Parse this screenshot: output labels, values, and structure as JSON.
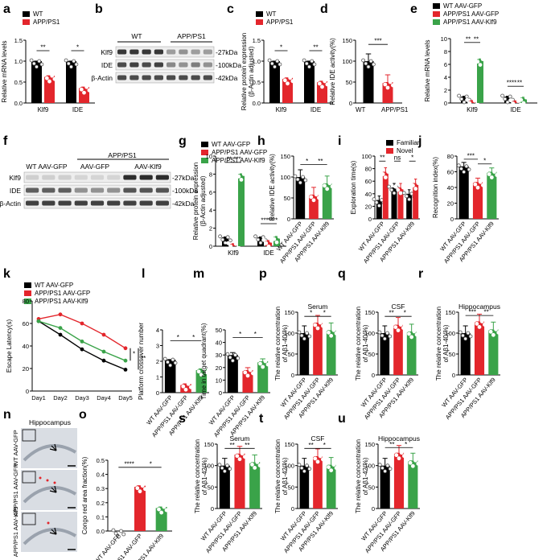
{
  "colors": {
    "wt": "#000000",
    "app": "#e3262c",
    "klf9": "#3aa349",
    "blotDark": "#222222",
    "histoBg": "#d9dde3"
  },
  "panel_labels": [
    "a",
    "b",
    "c",
    "d",
    "e",
    "f",
    "g",
    "h",
    "i",
    "j",
    "k",
    "l",
    "m",
    "n",
    "o",
    "p",
    "q",
    "r",
    "s",
    "t",
    "u"
  ],
  "legends": {
    "two": [
      "WT",
      "APP/PS1"
    ],
    "three": [
      "WT AAV-GFP",
      "APP/PS1 AAV-GFP",
      "APP/PS1 AAV-Klf9"
    ],
    "explore": [
      "Familiar",
      "Novel"
    ]
  },
  "blots": {
    "b": {
      "headers": [
        "WT",
        "APP/PS1"
      ],
      "rows_left": [
        "Klf9",
        "IDE",
        "β-Actin"
      ],
      "rows_right": [
        "-27kDa",
        "-100kDa",
        "-42kDa"
      ]
    },
    "f": {
      "headers_top": "APP/PS1",
      "headers": [
        "WT AAV-GFP",
        "AAV-GFP",
        "AAV-Klf9"
      ],
      "rows_left": [
        "Klf9",
        "IDE",
        "β-Actin"
      ],
      "rows_right": [
        "-27kDa",
        "-100kDa",
        "-42kDa"
      ]
    }
  },
  "histology": {
    "title": "Hippocampus",
    "rows": [
      "WT AAV-GFP",
      "APP/PS1 AAV-GFP",
      "APP/PS1 AAV-Klf9"
    ]
  },
  "chart_data": [
    {
      "id": "a",
      "type": "bar",
      "ylabel": "Relative mRNA levels",
      "categories": [
        "Klf9",
        "IDE"
      ],
      "ylim": [
        0,
        1.5
      ],
      "yticks": [
        "0.0",
        "0.5",
        "1.0",
        "1.5"
      ],
      "series": [
        {
          "name": "WT",
          "values": [
            1.0,
            1.0
          ]
        },
        {
          "name": "APP/PS1",
          "values": [
            0.65,
            0.38
          ]
        }
      ],
      "sig": [
        "**",
        "*"
      ]
    },
    {
      "id": "c",
      "type": "bar",
      "ylabel": "Relative protein expression (β-Actin adjusted)",
      "categories": [
        "Klf9",
        "IDE"
      ],
      "ylim": [
        0,
        1.5
      ],
      "yticks": [
        "0.0",
        "0.5",
        "1.0",
        "1.5"
      ],
      "series": [
        {
          "name": "WT",
          "values": [
            1.0,
            1.0
          ]
        },
        {
          "name": "APP/PS1",
          "values": [
            0.6,
            0.52
          ]
        }
      ],
      "sig": [
        "*",
        "**"
      ]
    },
    {
      "id": "d",
      "type": "bar",
      "ylabel": "Relative IDE activity(%)",
      "categories": [
        "WT",
        "APP/PS1"
      ],
      "ylim": [
        0,
        150
      ],
      "yticks": [
        "0",
        "50",
        "100",
        "150"
      ],
      "values": [
        100,
        50
      ],
      "sig": [
        "***"
      ]
    },
    {
      "id": "e",
      "type": "bar",
      "ylabel": "Relative mRNA levels",
      "categories": [
        "Klf9",
        "IDE"
      ],
      "ylim": [
        0,
        10
      ],
      "yticks": [
        "0",
        "2",
        "4",
        "6",
        "8",
        "10"
      ],
      "series": [
        {
          "name": "WT AAV-GFP",
          "values": [
            1.0,
            1.0
          ]
        },
        {
          "name": "APP/PS1 AAV-GFP",
          "values": [
            0.35,
            0.3
          ]
        },
        {
          "name": "APP/PS1 AAV-Klf9",
          "values": [
            6.8,
            0.85
          ]
        }
      ],
      "sig": [
        "**",
        "**",
        "****",
        "**"
      ]
    },
    {
      "id": "g",
      "type": "bar",
      "ylabel": "Relative protein expression (β-Actin adjusted)",
      "categories": [
        "Klf9",
        "IDE"
      ],
      "ylim": [
        0,
        10
      ],
      "yticks": [
        "0",
        "2",
        "4",
        "6",
        "8",
        "10"
      ],
      "axis_break": true,
      "series": [
        {
          "name": "WT AAV-GFP",
          "values": [
            1.0,
            1.0
          ]
        },
        {
          "name": "APP/PS1 AAV-GFP",
          "values": [
            0.25,
            0.6
          ]
        },
        {
          "name": "APP/PS1 AAV-Klf9",
          "values": [
            8.0,
            1.05
          ]
        }
      ],
      "sig": [
        "**",
        "***",
        "***",
        "****"
      ]
    },
    {
      "id": "h",
      "type": "bar",
      "ylabel": "Relative IDE activity(%)",
      "categories": [
        "WT AAV-GFP",
        "APP/PS1 AAV-GFP",
        "APP/PS1 AAV-Klf9"
      ],
      "ylim": [
        0,
        150
      ],
      "yticks": [
        "0",
        "50",
        "100",
        "150"
      ],
      "values": [
        100,
        58,
        85
      ],
      "sig": [
        "*",
        "**"
      ]
    },
    {
      "id": "i",
      "type": "bar",
      "ylabel": "Exploration time(s)",
      "categories": [
        "WT AAV-GFP",
        "APP/PS1 AAV-GFP",
        "APP/PS1 AAV-Klf9"
      ],
      "ylim": [
        0,
        100
      ],
      "yticks": [
        "0",
        "20",
        "40",
        "60",
        "80",
        "100"
      ],
      "series": [
        {
          "name": "Familiar",
          "values": [
            30,
            50,
            40
          ]
        },
        {
          "name": "Novel",
          "values": [
            75,
            50,
            57
          ]
        }
      ],
      "sig": [
        "**",
        "ns",
        "*"
      ]
    },
    {
      "id": "j",
      "type": "bar",
      "ylabel": "Recognition index(%)",
      "categories": [
        "WT AAV-GFP",
        "APP/PS1 AAV-GFP",
        "APP/PS1 AAV-Klf9"
      ],
      "ylim": [
        0,
        80
      ],
      "yticks": [
        "0",
        "20",
        "40",
        "60",
        "80"
      ],
      "values": [
        67,
        47,
        60
      ],
      "sig": [
        "***",
        "*",
        "*"
      ]
    },
    {
      "id": "k",
      "type": "line",
      "ylabel": "Escape Latency(s)",
      "x": [
        "Day1",
        "Day2",
        "Day3",
        "Day4",
        "Day5"
      ],
      "ylim": [
        0,
        80
      ],
      "yticks": [
        "0",
        "20",
        "40",
        "60",
        "80"
      ],
      "series": [
        {
          "name": "WT AAV-GFP",
          "values": [
            62,
            50,
            37,
            27,
            19
          ]
        },
        {
          "name": "APP/PS1 AAV-GFP",
          "values": [
            64,
            68,
            60,
            50,
            38
          ]
        },
        {
          "name": "APP/PS1 AAV-Klf9",
          "values": [
            62,
            56,
            44,
            35,
            27
          ]
        }
      ],
      "sig": [
        "*",
        "**"
      ]
    },
    {
      "id": "l",
      "type": "bar",
      "ylabel": "Platform crossover number",
      "categories": [
        "WT AAV-GFP",
        "APP/PS1 AAV-GFP",
        "APP/PS1 AAV-Klf9"
      ],
      "ylim": [
        0,
        4
      ],
      "yticks": [
        "0",
        "1",
        "2",
        "3",
        "4"
      ],
      "values": [
        2.1,
        0.55,
        1.5
      ],
      "sig": [
        "*",
        "*"
      ]
    },
    {
      "id": "m",
      "type": "bar",
      "ylabel": "Time in target quadrant(%)",
      "categories": [
        "WT AAV-GFP",
        "APP/PS1 AAV-GFP",
        "APP/PS1 AAV-Klf9"
      ],
      "ylim": [
        0,
        50
      ],
      "yticks": [
        "0",
        "10",
        "20",
        "30",
        "40",
        "50"
      ],
      "values": [
        30,
        18,
        25
      ],
      "sig": [
        "*",
        "*"
      ]
    },
    {
      "id": "o",
      "type": "bar",
      "ylabel": "Congo red area fraction(%)",
      "categories": [
        "WT AAV-GFP",
        "APP/PS1 AAV-GFP",
        "APP/PS1 AAV-Klf9"
      ],
      "ylim": [
        0,
        0.5
      ],
      "yticks": [
        "0.0",
        "0.1",
        "0.2",
        "0.3",
        "0.4",
        "0.5"
      ],
      "values": [
        0.0,
        0.32,
        0.17
      ],
      "sig": [
        "****",
        "*"
      ]
    },
    {
      "id": "p",
      "type": "bar",
      "title": "Serum",
      "ylabel": "The relative concentration of Aβ1-40(%)",
      "categories": [
        "WT AAV-GFP",
        "APP/PS1 AAV-GFP",
        "APP/PS1 AAV-Klf9"
      ],
      "ylim": [
        0,
        150
      ],
      "yticks": [
        "0",
        "50",
        "100",
        "150"
      ],
      "values": [
        100,
        125,
        107
      ],
      "sig": [
        "*",
        "*"
      ]
    },
    {
      "id": "q",
      "type": "bar",
      "title": "CSF",
      "ylabel": "The relative concentration of Aβ1-40(%)",
      "categories": [
        "WT AAV-GFP",
        "APP/PS1 AAV-GFP",
        "APP/PS1 AAV-Klf9"
      ],
      "ylim": [
        0,
        150
      ],
      "yticks": [
        "0",
        "50",
        "100",
        "150"
      ],
      "values": [
        100,
        120,
        104
      ],
      "sig": [
        "**",
        "*"
      ]
    },
    {
      "id": "r",
      "type": "bar",
      "title": "Hippocampus",
      "ylabel": "The relative concentration of Aβ1-40(%)",
      "categories": [
        "WT AAV-GFP",
        "APP/PS1 AAV-GFP",
        "APP/PS1 AAV-Klf9"
      ],
      "ylim": [
        0,
        150
      ],
      "yticks": [
        "0",
        "50",
        "100",
        "150"
      ],
      "values": [
        100,
        128,
        109
      ],
      "sig": [
        "***",
        "**"
      ]
    },
    {
      "id": "s",
      "type": "bar",
      "title": "Serum",
      "ylabel": "The relative concentration of Aβ1-42(%)",
      "categories": [
        "WT AAV-GFP",
        "APP/PS1 AAV-GFP",
        "APP/PS1 AAV-Klf9"
      ],
      "ylim": [
        0,
        150
      ],
      "yticks": [
        "0",
        "50",
        "100",
        "150"
      ],
      "values": [
        100,
        128,
        108
      ],
      "sig": [
        "**",
        "**"
      ]
    },
    {
      "id": "t",
      "type": "bar",
      "title": "CSF",
      "ylabel": "The relative concentration of Aβ1-42(%)",
      "categories": [
        "WT AAV-GFP",
        "APP/PS1 AAV-GFP",
        "APP/PS1 AAV-Klf9"
      ],
      "ylim": [
        0,
        150
      ],
      "yticks": [
        "0",
        "50",
        "100",
        "150"
      ],
      "values": [
        100,
        122,
        102
      ],
      "sig": [
        "**",
        "*"
      ]
    },
    {
      "id": "u",
      "type": "bar",
      "title": "Hippocampus",
      "ylabel": "The relative concentration of Aβ1-42(%)",
      "categories": [
        "WT AAV-GFP",
        "APP/PS1 AAV-GFP",
        "APP/PS1 AAV-Klf9"
      ],
      "ylim": [
        0,
        150
      ],
      "yticks": [
        "0",
        "50",
        "100",
        "150"
      ],
      "values": [
        100,
        130,
        112
      ],
      "sig": [
        "**",
        "*"
      ]
    }
  ]
}
